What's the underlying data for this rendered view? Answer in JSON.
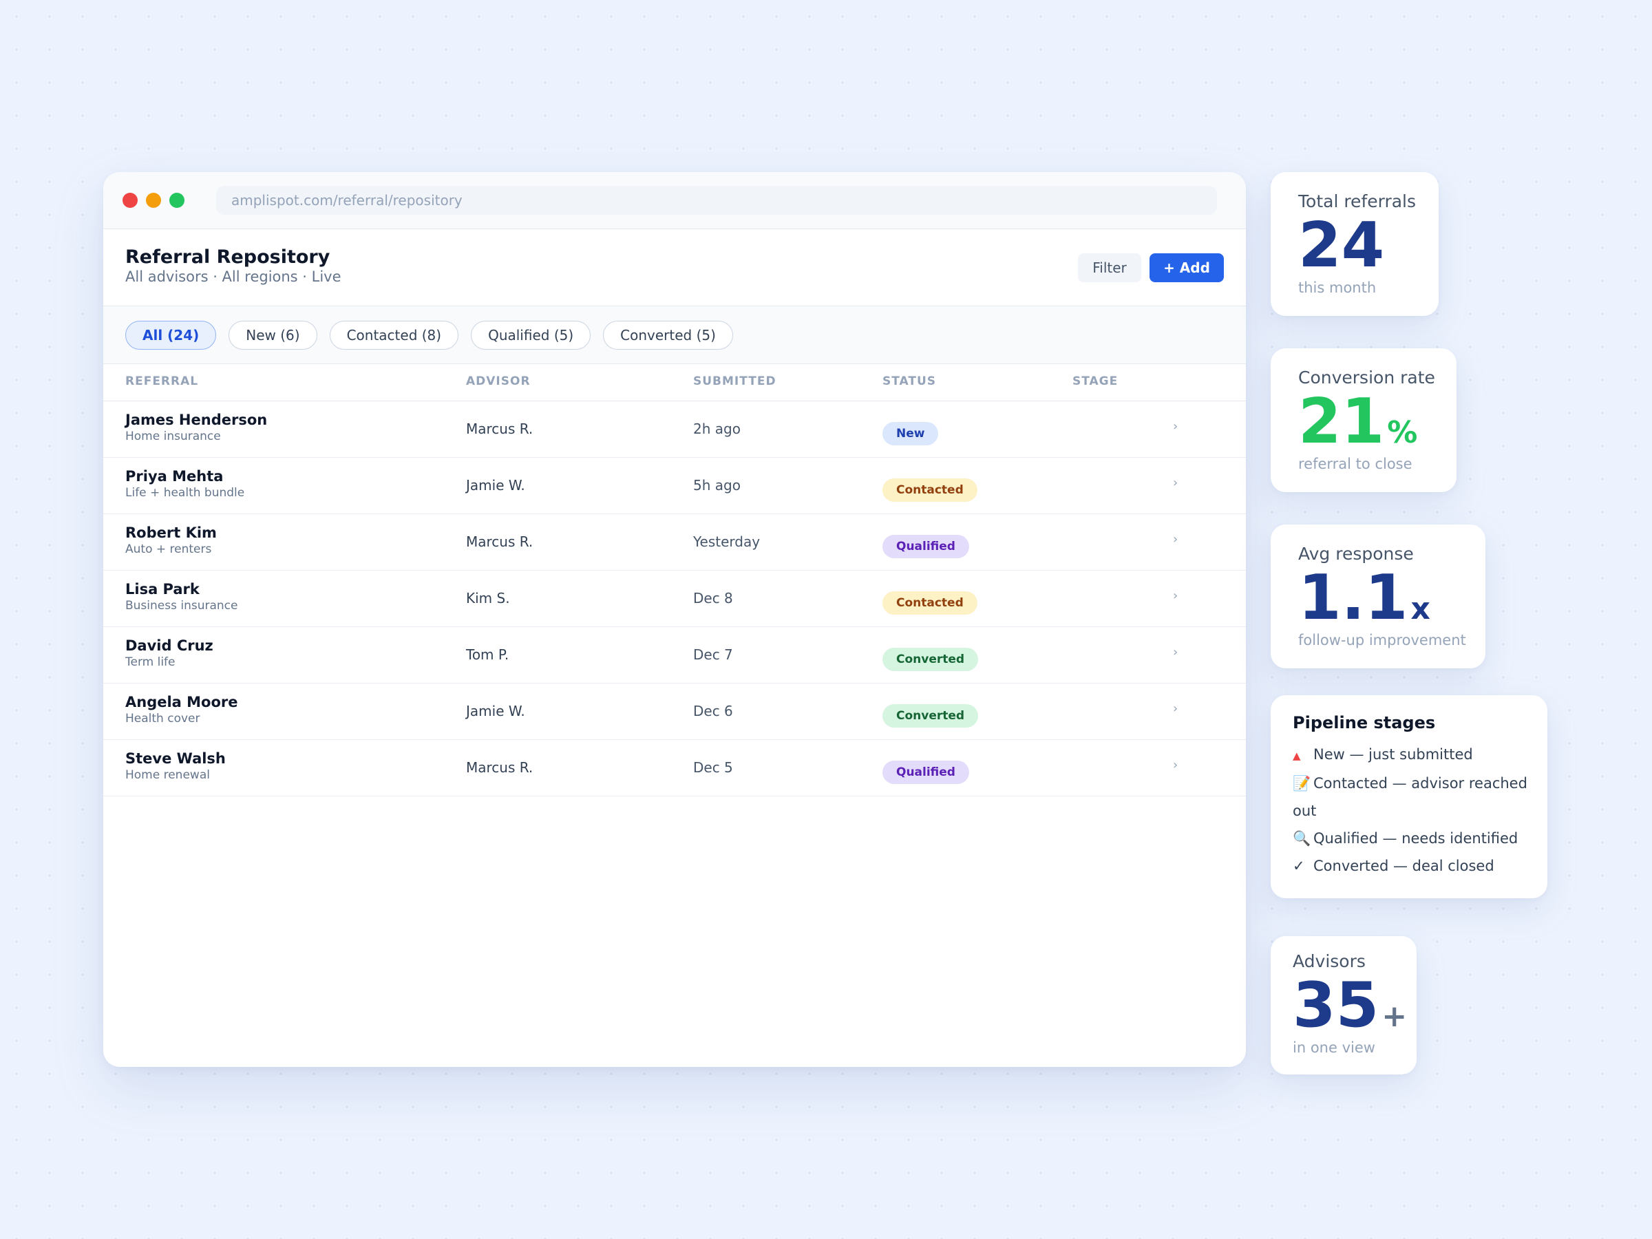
{
  "browser": {
    "url": "amplispot.com/referral/repository"
  },
  "header": {
    "title": "Referral Repository",
    "subtitle": "All advisors · All regions · Live",
    "filter_label": "Filter",
    "add_label": "+ Add"
  },
  "tabs": [
    {
      "label": "All (24)",
      "active": true
    },
    {
      "label": "New (6)"
    },
    {
      "label": "Contacted (8)"
    },
    {
      "label": "Qualified (5)"
    },
    {
      "label": "Converted (5)"
    }
  ],
  "table": {
    "columns": [
      "REFERRAL",
      "ADVISOR",
      "SUBMITTED",
      "STATUS",
      "STAGE"
    ],
    "rows": [
      {
        "name": "James Henderson",
        "type": "Home insurance",
        "advisor": "Marcus R.",
        "submitted": "2h ago",
        "status": "New",
        "stage": "›"
      },
      {
        "name": "Priya Mehta",
        "type": "Life + health bundle",
        "advisor": "Jamie W.",
        "submitted": "5h ago",
        "status": "Contacted",
        "stage": "›"
      },
      {
        "name": "Robert Kim",
        "type": "Auto + renters",
        "advisor": "Marcus R.",
        "submitted": "Yesterday",
        "status": "Qualified",
        "stage": "›"
      },
      {
        "name": "Lisa Park",
        "type": "Business insurance",
        "advisor": "Kim S.",
        "submitted": "Dec 8",
        "status": "Contacted",
        "stage": "›"
      },
      {
        "name": "David Cruz",
        "type": "Term life",
        "advisor": "Tom P.",
        "submitted": "Dec 7",
        "status": "Converted",
        "stage": "›"
      },
      {
        "name": "Angela Moore",
        "type": "Health cover",
        "advisor": "Jamie W.",
        "submitted": "Dec 6",
        "status": "Converted",
        "stage": "›"
      },
      {
        "name": "Steve Walsh",
        "type": "Home renewal",
        "advisor": "Marcus R.",
        "submitted": "Dec 5",
        "status": "Qualified",
        "stage": "›"
      }
    ]
  },
  "stats": {
    "total_referrals": {
      "label": "Total referrals",
      "value": "24",
      "unit": "",
      "caption": "this month"
    },
    "conversion_rate": {
      "label": "Conversion rate",
      "value": "21",
      "unit": "%",
      "caption": "referral to close"
    },
    "avg_response": {
      "label": "Avg response",
      "value": "1.1",
      "unit": "x",
      "caption": "follow-up improvement"
    },
    "advisors": {
      "label": "Advisors",
      "value": "35",
      "unit": "+",
      "caption": "in one view"
    }
  },
  "pipeline": {
    "title": "Pipeline stages",
    "items": [
      {
        "icon": "▲",
        "icon_name": "red-triangle-icon",
        "text": "New — just submitted"
      },
      {
        "icon": "📝",
        "icon_name": "memo-icon",
        "text": "Contacted — advisor reached out"
      },
      {
        "icon": "🔍",
        "icon_name": "magnifier-icon",
        "text": "Qualified — needs identified"
      },
      {
        "icon": "✓",
        "icon_name": "check-icon",
        "text": "Converted — deal closed"
      }
    ]
  },
  "colors": {
    "accent": "#2563eb",
    "navy": "#1e3a8a",
    "conversion_green": "#22c55e",
    "status_new": "#dbe7fd",
    "status_contacted": "#fdf1c6",
    "status_qualified": "#e4dcfb",
    "status_converted": "#d6f5e1"
  }
}
